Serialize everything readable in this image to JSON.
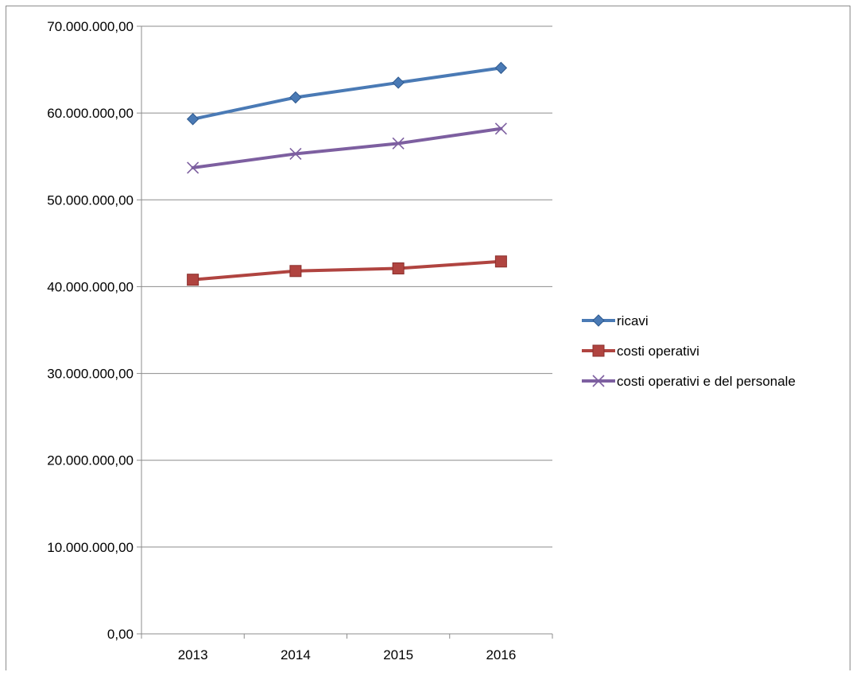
{
  "chart_data": {
    "type": "line",
    "title": "",
    "xlabel": "",
    "ylabel": "",
    "categories": [
      "2013",
      "2014",
      "2015",
      "2016"
    ],
    "ylim": [
      0,
      70000000
    ],
    "yticks": [
      0,
      10000000,
      20000000,
      30000000,
      40000000,
      50000000,
      60000000,
      70000000
    ],
    "ytick_labels": [
      "0,00",
      "10.000.000,00",
      "20.000.000,00",
      "30.000.000,00",
      "40.000.000,00",
      "50.000.000,00",
      "60.000.000,00",
      "70.000.000,00"
    ],
    "grid": "horizontal",
    "legend_position": "right",
    "series": [
      {
        "name": "ricavi",
        "values": [
          59300000,
          61800000,
          63500000,
          65200000
        ],
        "color": "#4a7ab5",
        "marker": "diamond"
      },
      {
        "name": "costi operativi",
        "values": [
          40800000,
          41800000,
          42100000,
          42900000
        ],
        "color": "#b04440",
        "marker": "square"
      },
      {
        "name": "costi operativi e del personale",
        "values": [
          53700000,
          55300000,
          56500000,
          58200000
        ],
        "color": "#7d5fa0",
        "marker": "x"
      }
    ]
  }
}
